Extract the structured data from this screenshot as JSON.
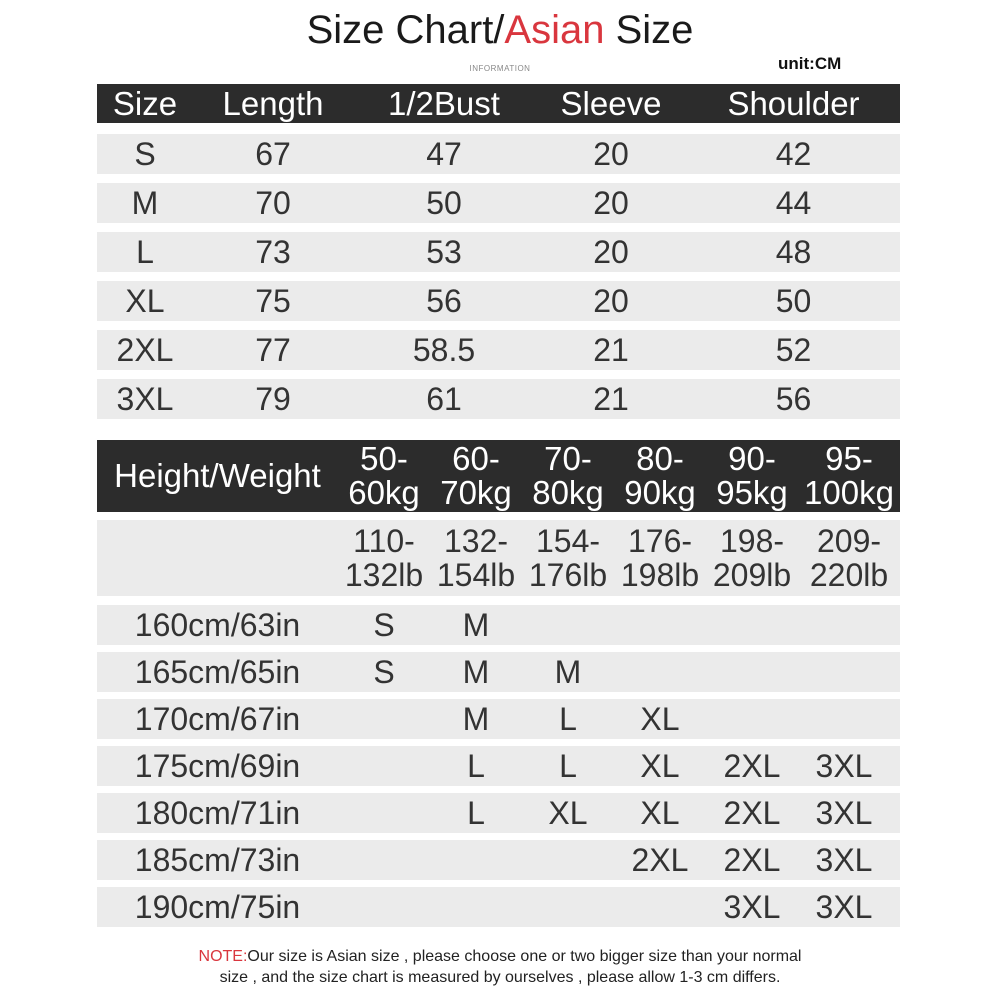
{
  "title": {
    "part1": "Size Chart/",
    "accent": "Asian",
    "part2": " Size"
  },
  "subtitle": "INFORMATION",
  "unit": "unit:CM",
  "colors": {
    "accent": "#d9363e",
    "header_bg": "#2c2c2c",
    "row_bg": "#ebebeb"
  },
  "measure_table": {
    "headers": [
      "Size",
      "Length",
      "1/2Bust",
      "Sleeve",
      "Shoulder"
    ],
    "rows": [
      [
        "S",
        "67",
        "47",
        "20",
        "42"
      ],
      [
        "M",
        "70",
        "50",
        "20",
        "44"
      ],
      [
        "L",
        "73",
        "53",
        "20",
        "48"
      ],
      [
        "XL",
        "75",
        "56",
        "20",
        "50"
      ],
      [
        "2XL",
        "77",
        "58.5",
        "21",
        "52"
      ],
      [
        "3XL",
        "79",
        "61",
        "21",
        "56"
      ]
    ]
  },
  "fit_table": {
    "corner": "Height/Weight",
    "kg": [
      [
        "50-",
        "60kg"
      ],
      [
        "60-",
        "70kg"
      ],
      [
        "70-",
        "80kg"
      ],
      [
        "80-",
        "90kg"
      ],
      [
        "90-",
        "95kg"
      ],
      [
        "95-",
        "100kg"
      ]
    ],
    "lb": [
      [
        "110-",
        "132lb"
      ],
      [
        "132-",
        "154lb"
      ],
      [
        "154-",
        "176lb"
      ],
      [
        "176-",
        "198lb"
      ],
      [
        "198-",
        "209lb"
      ],
      [
        "209-",
        "220lb"
      ]
    ],
    "rows": [
      {
        "height": "160cm/63in",
        "sizes": [
          "S",
          "M",
          "",
          "",
          "",
          ""
        ]
      },
      {
        "height": "165cm/65in",
        "sizes": [
          "S",
          "M",
          "M",
          "",
          "",
          ""
        ]
      },
      {
        "height": "170cm/67in",
        "sizes": [
          "",
          "M",
          "L",
          "XL",
          "",
          ""
        ]
      },
      {
        "height": "175cm/69in",
        "sizes": [
          "",
          "L",
          "L",
          "XL",
          "2XL",
          "3XL"
        ]
      },
      {
        "height": "180cm/71in",
        "sizes": [
          "",
          "L",
          "XL",
          "XL",
          "2XL",
          "3XL"
        ]
      },
      {
        "height": "185cm/73in",
        "sizes": [
          "",
          "",
          "",
          "2XL",
          "2XL",
          "3XL"
        ]
      },
      {
        "height": "190cm/75in",
        "sizes": [
          "",
          "",
          "",
          "",
          "3XL",
          "3XL"
        ]
      }
    ]
  },
  "note": {
    "label": "NOTE:",
    "line1": "Our size is Asian size , please choose one or two bigger size than your normal",
    "line2": "size , and the size chart is measured by ourselves , please allow 1-3 cm differs."
  }
}
